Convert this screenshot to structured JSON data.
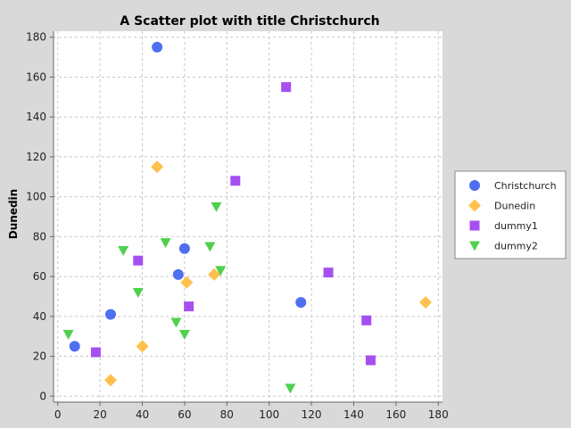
{
  "chart_data": {
    "type": "scatter",
    "title": "A Scatter plot with title Christchurch",
    "xlabel": "",
    "ylabel": "Dunedin",
    "xlim": [
      -2,
      182
    ],
    "ylim": [
      -3,
      183
    ],
    "xticks": [
      0,
      20,
      40,
      60,
      80,
      100,
      120,
      140,
      160,
      180
    ],
    "yticks": [
      0,
      20,
      40,
      60,
      80,
      100,
      120,
      140,
      160,
      180
    ],
    "grid": true,
    "legend_position": "right",
    "series": [
      {
        "name": "Christchurch",
        "marker": "circle",
        "color": "#4f6ff0",
        "points": [
          [
            8,
            25
          ],
          [
            25,
            41
          ],
          [
            47,
            175
          ],
          [
            57,
            61
          ],
          [
            60,
            74
          ],
          [
            115,
            47
          ]
        ]
      },
      {
        "name": "Dunedin",
        "marker": "diamond",
        "color": "#ffc04d",
        "points": [
          [
            25,
            8
          ],
          [
            40,
            25
          ],
          [
            47,
            115
          ],
          [
            61,
            57
          ],
          [
            74,
            61
          ],
          [
            174,
            47
          ]
        ]
      },
      {
        "name": "dummy1",
        "marker": "square",
        "color": "#a64ff0",
        "points": [
          [
            18,
            22
          ],
          [
            38,
            68
          ],
          [
            62,
            45
          ],
          [
            84,
            108
          ],
          [
            108,
            155
          ],
          [
            128,
            62
          ],
          [
            146,
            38
          ],
          [
            148,
            18
          ]
        ]
      },
      {
        "name": "dummy2",
        "marker": "triangle-down",
        "color": "#4fd04f",
        "points": [
          [
            5,
            31
          ],
          [
            31,
            73
          ],
          [
            38,
            52
          ],
          [
            51,
            77
          ],
          [
            56,
            37
          ],
          [
            60,
            31
          ],
          [
            72,
            75
          ],
          [
            75,
            95
          ],
          [
            77,
            63
          ],
          [
            110,
            4
          ]
        ]
      }
    ]
  }
}
